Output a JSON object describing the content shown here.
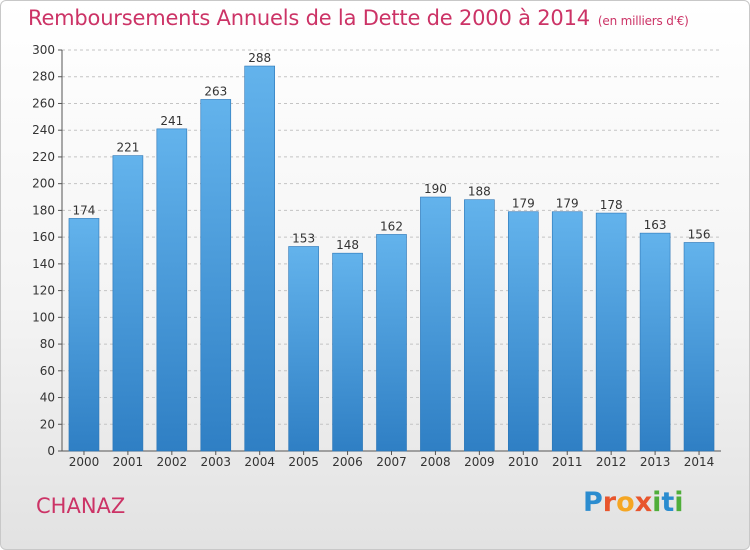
{
  "title": "Remboursements Annuels de la Dette de 2000 à 2014",
  "subtitle": "(en milliers d'€)",
  "commune": "CHANAZ",
  "logo": {
    "text": "Proxiti",
    "letters": [
      {
        "ch": "P",
        "color": "#2b8ccf"
      },
      {
        "ch": "r",
        "color": "#e8552d"
      },
      {
        "ch": "o",
        "color": "#f5a623"
      },
      {
        "ch": "x",
        "color": "#e8552d"
      },
      {
        "ch": "i",
        "color": "#4fae3a"
      },
      {
        "ch": "t",
        "color": "#2b8ccf"
      },
      {
        "ch": "i",
        "color": "#4fae3a"
      }
    ]
  },
  "colors": {
    "bar": "#4a9fe0",
    "bar_light": "#63b3ec",
    "bar_dark": "#2f7fc4",
    "title": "#cc3366",
    "grid": "#c4c4c4",
    "text": "#333333"
  },
  "chart_data": {
    "type": "bar",
    "title": "Remboursements Annuels de la Dette de 2000 à 2014",
    "unit": "(en milliers d'€)",
    "categories": [
      "2000",
      "2001",
      "2002",
      "2003",
      "2004",
      "2005",
      "2006",
      "2007",
      "2008",
      "2009",
      "2010",
      "2011",
      "2012",
      "2013",
      "2014"
    ],
    "values": [
      174,
      221,
      241,
      263,
      288,
      153,
      148,
      162,
      190,
      188,
      179,
      179,
      178,
      163,
      156
    ],
    "ylim": [
      0,
      300
    ],
    "yticks": [
      0,
      20,
      40,
      60,
      80,
      100,
      120,
      140,
      160,
      180,
      200,
      220,
      240,
      260,
      280,
      300
    ],
    "grid": true,
    "xlabel": "",
    "ylabel": ""
  }
}
